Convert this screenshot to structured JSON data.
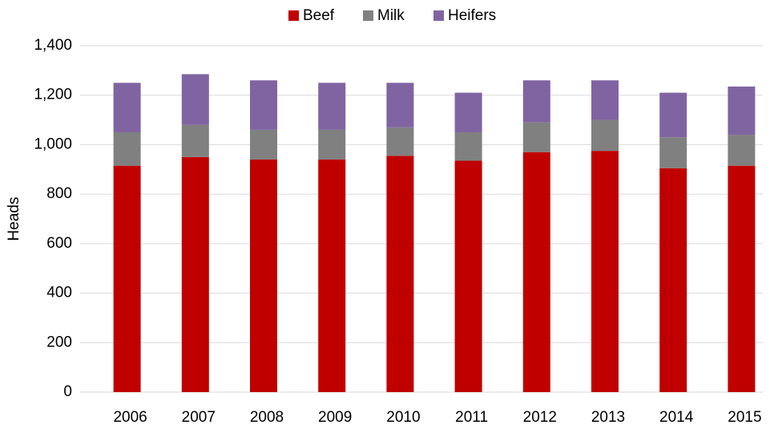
{
  "chart_data": {
    "type": "stacked_bar",
    "y_label": "Heads",
    "categories": [
      "2006",
      "2007",
      "2008",
      "2009",
      "2010",
      "2011",
      "2012",
      "2013",
      "2014",
      "2015"
    ],
    "series": [
      {
        "name": "Beef",
        "color": "#c00000",
        "values": [
          915,
          950,
          940,
          940,
          955,
          935,
          970,
          975,
          905,
          915
        ]
      },
      {
        "name": "Milk",
        "color": "#808080",
        "values": [
          135,
          130,
          120,
          120,
          115,
          115,
          120,
          125,
          125,
          125
        ]
      },
      {
        "name": "Heifers",
        "color": "#8064a2",
        "values": [
          200,
          205,
          200,
          190,
          180,
          160,
          170,
          160,
          180,
          195
        ]
      }
    ],
    "ylim": [
      0,
      1400
    ],
    "yticks": [
      0,
      200,
      400,
      600,
      800,
      {
        "value": 1000,
        "label": "1,000"
      },
      {
        "value": 1200,
        "label": "1,200"
      },
      {
        "value": 1400,
        "label": "1,400"
      }
    ],
    "grid": true,
    "legend": "top"
  }
}
